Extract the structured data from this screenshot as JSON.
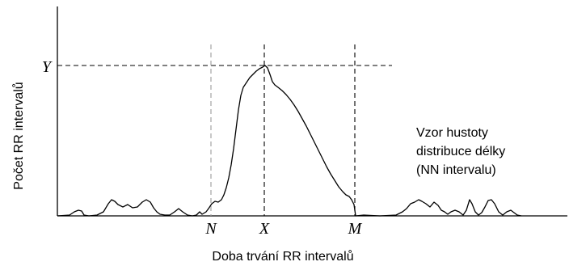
{
  "axes": {
    "x_label": "Doba trvání RR intervalů",
    "y_label": "Počet RR intervalů"
  },
  "markers": {
    "y_peak": "Y",
    "n": "N",
    "x": "X",
    "m": "M"
  },
  "annotation": {
    "line1": "Vzor hustoty",
    "line2": "distribuce délky",
    "line3": "(NN intervalu)"
  }
}
